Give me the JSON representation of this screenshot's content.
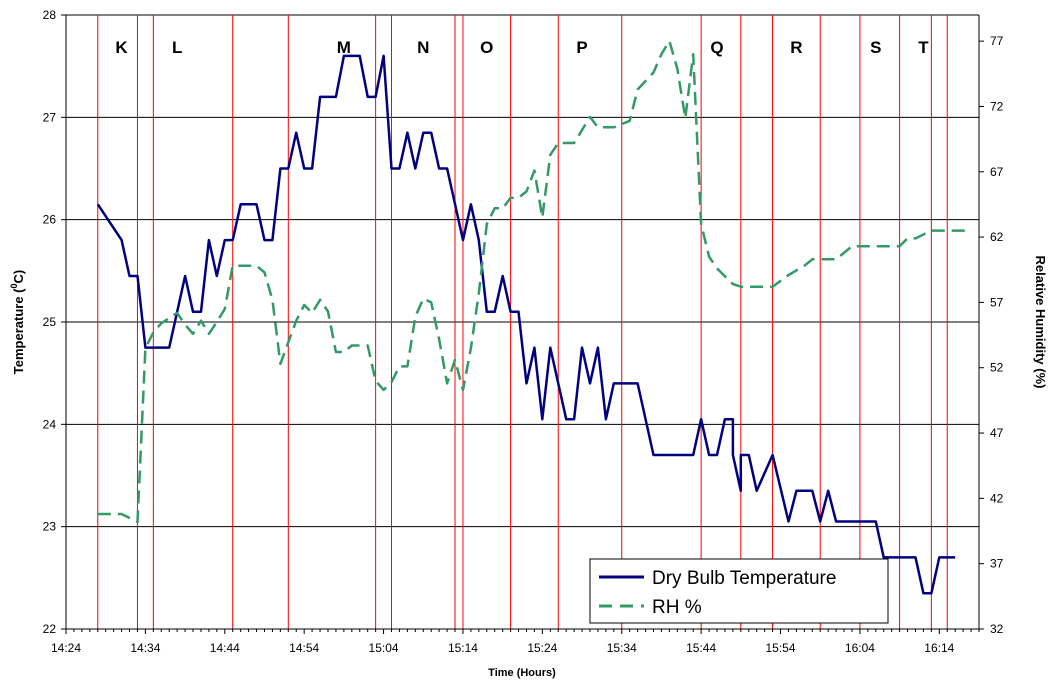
{
  "chart_data": {
    "type": "line",
    "xlabel": "Time (Hours)",
    "ylabel": "Temperature (0C)",
    "ylabel_parts": {
      "pre": "Temperature (",
      "sup": "0",
      "post": "C)"
    },
    "y2label": "Relative Humidity (%)",
    "xlim_minutes": [
      864,
      979
    ],
    "ylim": [
      22,
      28
    ],
    "y2lim": [
      32,
      79
    ],
    "x_ticks": [
      "14:24",
      "14:34",
      "14:44",
      "14:54",
      "15:04",
      "15:14",
      "15:24",
      "15:34",
      "15:44",
      "15:54",
      "16:04",
      "16:14"
    ],
    "y_ticks": [
      "22",
      "23",
      "24",
      "25",
      "26",
      "27",
      "28"
    ],
    "y2_ticks": [
      "32",
      "37",
      "42",
      "47",
      "52",
      "57",
      "62",
      "67",
      "72",
      "77"
    ],
    "region_boundaries": [
      "14:28",
      "14:33",
      "14:35",
      "14:45",
      "14:52",
      "15:03",
      "15:05",
      "15:13",
      "15:14",
      "15:20",
      "15:26",
      "15:34",
      "15:44",
      "15:49",
      "15:53",
      "15:59",
      "16:04",
      "16:09",
      "16:13",
      "16:15"
    ],
    "regions": [
      {
        "label": "K",
        "x": "14:31"
      },
      {
        "label": "L",
        "x": "14:38"
      },
      {
        "label": "M",
        "x": "14:59"
      },
      {
        "label": "N",
        "x": "15:09"
      },
      {
        "label": "O",
        "x": "15:17"
      },
      {
        "label": "P",
        "x": "15:29"
      },
      {
        "label": "Q",
        "x": "15:46"
      },
      {
        "label": "R",
        "x": "15:56"
      },
      {
        "label": "S",
        "x": "16:06"
      },
      {
        "label": "T",
        "x": "16:12"
      }
    ],
    "series": [
      {
        "name": "Dry Bulb Temperature",
        "axis": "left",
        "color": "#000080",
        "style": "solid",
        "points": [
          [
            "14:28",
            26.15
          ],
          [
            "14:31",
            25.8
          ],
          [
            "14:32",
            25.45
          ],
          [
            "14:33",
            25.45
          ],
          [
            "14:34",
            24.75
          ],
          [
            "14:37",
            24.75
          ],
          [
            "14:39",
            25.45
          ],
          [
            "14:40",
            25.1
          ],
          [
            "14:41",
            25.1
          ],
          [
            "14:42",
            25.8
          ],
          [
            "14:43",
            25.45
          ],
          [
            "14:44",
            25.8
          ],
          [
            "14:45",
            25.8
          ],
          [
            "14:46",
            26.15
          ],
          [
            "14:48",
            26.15
          ],
          [
            "14:49",
            25.8
          ],
          [
            "14:50",
            25.8
          ],
          [
            "14:51",
            26.5
          ],
          [
            "14:52",
            26.5
          ],
          [
            "14:53",
            26.85
          ],
          [
            "14:54",
            26.5
          ],
          [
            "14:55",
            26.5
          ],
          [
            "14:56",
            27.2
          ],
          [
            "14:58",
            27.2
          ],
          [
            "14:59",
            27.6
          ],
          [
            "15:01",
            27.6
          ],
          [
            "15:02",
            27.2
          ],
          [
            "15:03",
            27.2
          ],
          [
            "15:04",
            27.6
          ],
          [
            "15:05",
            26.5
          ],
          [
            "15:06",
            26.5
          ],
          [
            "15:07",
            26.85
          ],
          [
            "15:08",
            26.5
          ],
          [
            "15:09",
            26.85
          ],
          [
            "15:10",
            26.85
          ],
          [
            "15:11",
            26.5
          ],
          [
            "15:12",
            26.5
          ],
          [
            "15:14",
            25.8
          ],
          [
            "15:15",
            26.15
          ],
          [
            "15:16",
            25.8
          ],
          [
            "15:17",
            25.1
          ],
          [
            "15:18",
            25.1
          ],
          [
            "15:19",
            25.45
          ],
          [
            "15:20",
            25.1
          ],
          [
            "15:21",
            25.1
          ],
          [
            "15:22",
            24.4
          ],
          [
            "15:23",
            24.75
          ],
          [
            "15:24",
            24.05
          ],
          [
            "15:25",
            24.75
          ],
          [
            "15:27",
            24.05
          ],
          [
            "15:28",
            24.05
          ],
          [
            "15:29",
            24.75
          ],
          [
            "15:30",
            24.4
          ],
          [
            "15:31",
            24.75
          ],
          [
            "15:32",
            24.05
          ],
          [
            "15:33",
            24.4
          ],
          [
            "15:36",
            24.4
          ],
          [
            "15:38",
            23.7
          ],
          [
            "15:43",
            23.7
          ],
          [
            "15:44",
            24.05
          ],
          [
            "15:45",
            23.7
          ],
          [
            "15:46",
            23.7
          ],
          [
            "15:47",
            24.05
          ],
          [
            "15:48",
            24.05
          ],
          [
            "15:48",
            23.7
          ],
          [
            "15:49",
            23.35
          ],
          [
            "15:49",
            23.7
          ],
          [
            "15:50",
            23.7
          ],
          [
            "15:51",
            23.35
          ],
          [
            "15:53",
            23.7
          ],
          [
            "15:55",
            23.05
          ],
          [
            "15:56",
            23.35
          ],
          [
            "15:58",
            23.35
          ],
          [
            "15:59",
            23.05
          ],
          [
            "16:00",
            23.35
          ],
          [
            "16:01",
            23.05
          ],
          [
            "16:06",
            23.05
          ],
          [
            "16:07",
            22.7
          ],
          [
            "16:11",
            22.7
          ],
          [
            "16:12",
            22.35
          ],
          [
            "16:13",
            22.35
          ],
          [
            "16:14",
            22.7
          ],
          [
            "16:16",
            22.7
          ]
        ]
      },
      {
        "name": "RH %",
        "axis": "right",
        "color": "#339966",
        "style": "dashed",
        "points": [
          [
            "14:28",
            40.8
          ],
          [
            "14:31",
            40.8
          ],
          [
            "14:33",
            40.2
          ],
          [
            "14:34",
            53.5
          ],
          [
            "14:35",
            54.7
          ],
          [
            "14:36",
            55.4
          ],
          [
            "14:38",
            56.2
          ],
          [
            "14:39",
            55.3
          ],
          [
            "14:40",
            54.6
          ],
          [
            "14:41",
            55.6
          ],
          [
            "14:42",
            54.6
          ],
          [
            "14:43",
            55.5
          ],
          [
            "14:44",
            56.5
          ],
          [
            "14:45",
            59.8
          ],
          [
            "14:48",
            59.8
          ],
          [
            "14:49",
            59.3
          ],
          [
            "14:50",
            57.2
          ],
          [
            "14:51",
            52.3
          ],
          [
            "14:53",
            55.6
          ],
          [
            "14:54",
            56.8
          ],
          [
            "14:55",
            56.2
          ],
          [
            "14:56",
            57.2
          ],
          [
            "14:57",
            56.3
          ],
          [
            "14:58",
            53.2
          ],
          [
            "14:59",
            53.2
          ],
          [
            "15:00",
            53.7
          ],
          [
            "15:02",
            53.7
          ],
          [
            "15:03",
            51.0
          ],
          [
            "15:04",
            50.3
          ],
          [
            "15:05",
            50.9
          ],
          [
            "15:06",
            52.1
          ],
          [
            "15:07",
            52.1
          ],
          [
            "15:08",
            55.9
          ],
          [
            "15:09",
            57.3
          ],
          [
            "15:10",
            57.0
          ],
          [
            "15:11",
            54.2
          ],
          [
            "15:12",
            50.8
          ],
          [
            "15:13",
            52.6
          ],
          [
            "15:14",
            50.3
          ],
          [
            "15:15",
            53.5
          ],
          [
            "15:16",
            57.7
          ],
          [
            "15:17",
            63.0
          ],
          [
            "15:18",
            64.2
          ],
          [
            "15:19",
            64.2
          ],
          [
            "15:20",
            65.0
          ],
          [
            "15:21",
            65.0
          ],
          [
            "15:22",
            65.5
          ],
          [
            "15:23",
            67.1
          ],
          [
            "15:24",
            63.5
          ],
          [
            "15:25",
            68.3
          ],
          [
            "15:26",
            69.2
          ],
          [
            "15:28",
            69.2
          ],
          [
            "15:30",
            71.2
          ],
          [
            "15:31",
            70.4
          ],
          [
            "15:33",
            70.4
          ],
          [
            "15:35",
            70.9
          ],
          [
            "15:36",
            73.3
          ],
          [
            "15:38",
            74.6
          ],
          [
            "15:39",
            76.0
          ],
          [
            "15:40",
            77.0
          ],
          [
            "15:41",
            74.9
          ],
          [
            "15:42",
            71.1
          ],
          [
            "15:43",
            76.0
          ],
          [
            "15:44",
            63.0
          ],
          [
            "15:45",
            60.5
          ],
          [
            "15:46",
            59.6
          ],
          [
            "15:47",
            59.0
          ],
          [
            "15:48",
            58.4
          ],
          [
            "15:49",
            58.2
          ],
          [
            "15:53",
            58.2
          ],
          [
            "15:55",
            59.1
          ],
          [
            "15:57",
            59.8
          ],
          [
            "15:58",
            60.3
          ],
          [
            "16:01",
            60.3
          ],
          [
            "16:03",
            61.3
          ],
          [
            "16:09",
            61.3
          ],
          [
            "16:10",
            61.9
          ],
          [
            "16:11",
            61.9
          ],
          [
            "16:13",
            62.5
          ],
          [
            "16:18",
            62.5
          ]
        ]
      }
    ],
    "legend": {
      "position": "bottom-right",
      "entries": [
        "Dry Bulb Temperature",
        "RH %"
      ]
    },
    "grid": {
      "horizontal": true,
      "vertical": false
    },
    "colors": {
      "gridline": "#000000",
      "boundary": "#ff0000",
      "temperature": "#000080",
      "rh": "#339966"
    }
  }
}
